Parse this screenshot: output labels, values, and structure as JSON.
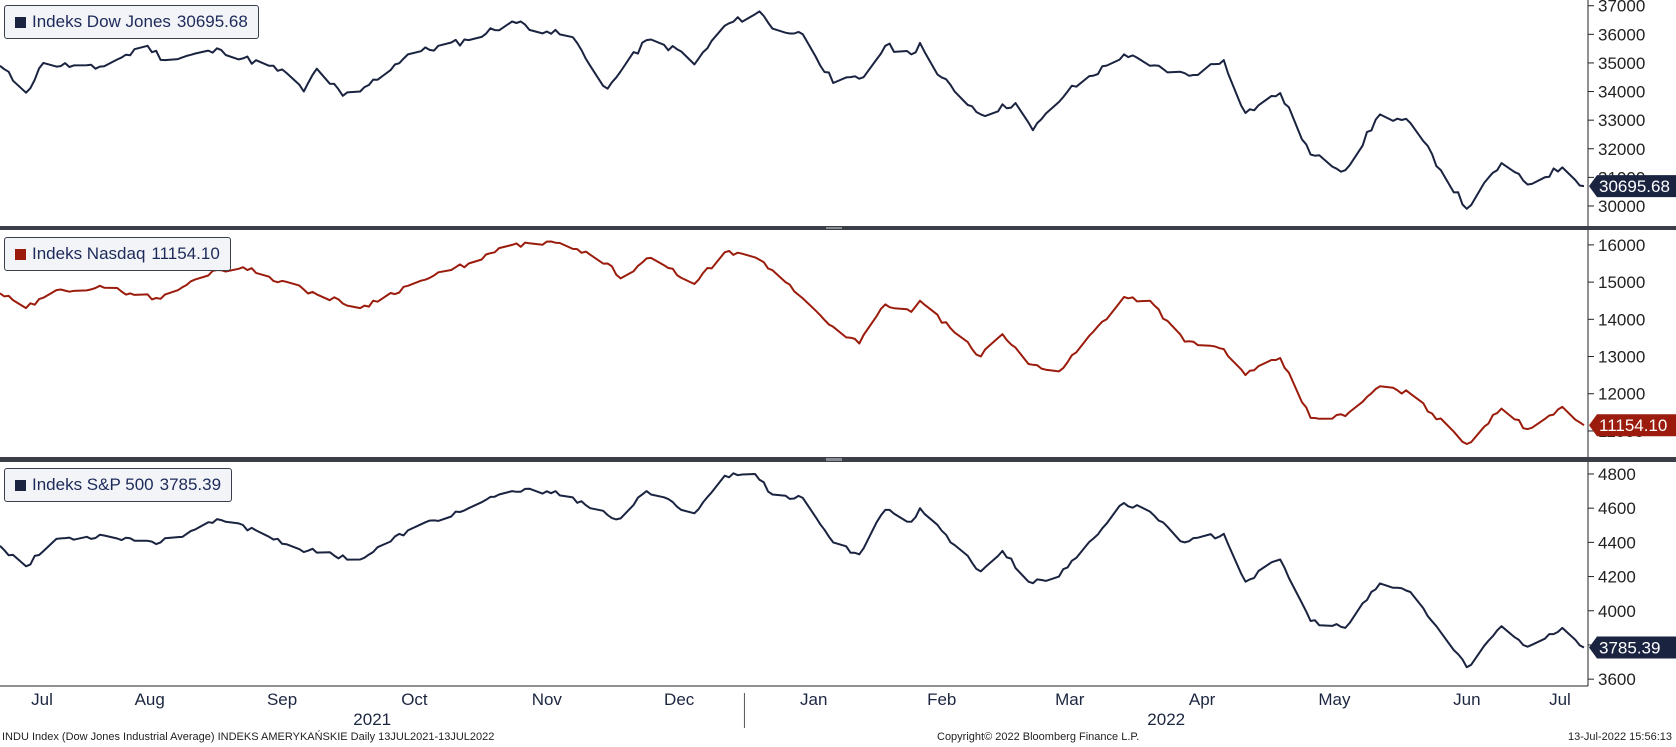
{
  "footer": {
    "left": "INDU Index (Dow Jones Industrial Average) INDEKS AMERYKAŃSKIE  Daily 13JUL2021-13JUL2022",
    "center": "Copyright© 2022 Bloomberg Finance L.P.",
    "right": "13-Jul-2022 15:56:13"
  },
  "x_axis": {
    "months": [
      "Jul",
      "Aug",
      "Sep",
      "Oct",
      "Nov",
      "Dec",
      "Jan",
      "Feb",
      "Mar",
      "Apr",
      "May",
      "Jun",
      "Jul"
    ],
    "years": [
      "2021",
      "2022"
    ]
  },
  "colors": {
    "dark_line": "#1a2340",
    "nasdaq_line": "#9b1c0c",
    "axis": "#222222"
  },
  "chart_data": [
    {
      "type": "line",
      "legend_label": "Indeks Dow Jones",
      "last_value_label": "30695.68",
      "color": "#1a2340",
      "ylim": [
        29300,
        37200
      ],
      "yticks": [
        30000,
        31000,
        32000,
        33000,
        34000,
        35000,
        36000,
        37000
      ],
      "grid": false,
      "x_start": "2021-07-13",
      "x_end": "2022-07-13",
      "series": [
        {
          "anchors": [
            [
              "2021-07-13",
              34900
            ],
            [
              "2021-07-19",
              33960
            ],
            [
              "2021-07-23",
              35000
            ],
            [
              "2021-08-04",
              34800
            ],
            [
              "2021-08-16",
              35600
            ],
            [
              "2021-08-20",
              35100
            ],
            [
              "2021-09-02",
              35450
            ],
            [
              "2021-09-17",
              34650
            ],
            [
              "2021-09-21",
              34000
            ],
            [
              "2021-09-24",
              34800
            ],
            [
              "2021-09-30",
              33850
            ],
            [
              "2021-10-04",
              34000
            ],
            [
              "2021-10-15",
              35300
            ],
            [
              "2021-10-29",
              35800
            ],
            [
              "2021-11-08",
              36450
            ],
            [
              "2021-11-16",
              36100
            ],
            [
              "2021-11-22",
              35900
            ],
            [
              "2021-11-26",
              34900
            ],
            [
              "2021-11-30",
              34100
            ],
            [
              "2021-12-03",
              34700
            ],
            [
              "2021-12-09",
              35800
            ],
            [
              "2021-12-17",
              35400
            ],
            [
              "2021-12-20",
              34950
            ],
            [
              "2021-12-27",
              36300
            ],
            [
              "2022-01-04",
              36800
            ],
            [
              "2022-01-07",
              36200
            ],
            [
              "2022-01-14",
              36000
            ],
            [
              "2022-01-21",
              34300
            ],
            [
              "2022-01-28",
              34500
            ],
            [
              "2022-02-02",
              35600
            ],
            [
              "2022-02-08",
              35300
            ],
            [
              "2022-02-10",
              35700
            ],
            [
              "2022-02-14",
              34600
            ],
            [
              "2022-02-24",
              33200
            ],
            [
              "2022-03-04",
              33600
            ],
            [
              "2022-03-08",
              32650
            ],
            [
              "2022-03-16",
              34000
            ],
            [
              "2022-03-29",
              35300
            ],
            [
              "2022-04-04",
              34900
            ],
            [
              "2022-04-13",
              34550
            ],
            [
              "2022-04-21",
              35100
            ],
            [
              "2022-04-26",
              33250
            ],
            [
              "2022-05-04",
              33950
            ],
            [
              "2022-05-11",
              31800
            ],
            [
              "2022-05-19",
              31250
            ],
            [
              "2022-05-27",
              33200
            ],
            [
              "2022-06-03",
              32900
            ],
            [
              "2022-06-16",
              29900
            ],
            [
              "2022-06-24",
              31500
            ],
            [
              "2022-06-30",
              30750
            ],
            [
              "2022-07-08",
              31350
            ],
            [
              "2022-07-13",
              30695.68
            ]
          ]
        }
      ]
    },
    {
      "type": "line",
      "legend_label": "Indeks Nasdaq",
      "last_value_label": "11154.10",
      "color": "#9b1c0c",
      "ylim": [
        10300,
        16400
      ],
      "yticks": [
        11000,
        12000,
        13000,
        14000,
        15000,
        16000
      ],
      "grid": false,
      "x_start": "2021-07-13",
      "x_end": "2022-07-13",
      "series": [
        {
          "anchors": [
            [
              "2021-07-13",
              14700
            ],
            [
              "2021-07-19",
              14300
            ],
            [
              "2021-07-27",
              14800
            ],
            [
              "2021-08-06",
              14850
            ],
            [
              "2021-08-19",
              14550
            ],
            [
              "2021-08-31",
              15300
            ],
            [
              "2021-09-07",
              15400
            ],
            [
              "2021-09-21",
              14800
            ],
            [
              "2021-10-04",
              14300
            ],
            [
              "2021-10-15",
              14900
            ],
            [
              "2021-10-29",
              15500
            ],
            [
              "2021-11-08",
              16000
            ],
            [
              "2021-11-19",
              16050
            ],
            [
              "2021-11-30",
              15500
            ],
            [
              "2021-12-03",
              15100
            ],
            [
              "2021-12-10",
              15650
            ],
            [
              "2021-12-20",
              14950
            ],
            [
              "2021-12-27",
              15800
            ],
            [
              "2022-01-04",
              15600
            ],
            [
              "2022-01-10",
              15000
            ],
            [
              "2022-01-21",
              13800
            ],
            [
              "2022-01-27",
              13350
            ],
            [
              "2022-02-02",
              14400
            ],
            [
              "2022-02-08",
              14200
            ],
            [
              "2022-02-10",
              14500
            ],
            [
              "2022-02-24",
              13000
            ],
            [
              "2022-03-01",
              13600
            ],
            [
              "2022-03-07",
              12800
            ],
            [
              "2022-03-14",
              12600
            ],
            [
              "2022-03-29",
              14600
            ],
            [
              "2022-04-04",
              14500
            ],
            [
              "2022-04-12",
              13400
            ],
            [
              "2022-04-21",
              13200
            ],
            [
              "2022-04-26",
              12500
            ],
            [
              "2022-05-04",
              12960
            ],
            [
              "2022-05-11",
              11350
            ],
            [
              "2022-05-19",
              11400
            ],
            [
              "2022-05-27",
              12200
            ],
            [
              "2022-06-03",
              12000
            ],
            [
              "2022-06-16",
              10650
            ],
            [
              "2022-06-24",
              11600
            ],
            [
              "2022-06-30",
              11050
            ],
            [
              "2022-07-08",
              11650
            ],
            [
              "2022-07-13",
              11154.1
            ]
          ]
        }
      ]
    },
    {
      "type": "line",
      "legend_label": "Indeks S&P 500",
      "last_value_label": "3785.39",
      "color": "#1a2340",
      "ylim": [
        3560,
        4870
      ],
      "yticks": [
        3600,
        3800,
        4000,
        4200,
        4400,
        4600,
        4800
      ],
      "grid": false,
      "x_start": "2021-07-13",
      "x_end": "2022-07-13",
      "series": [
        {
          "anchors": [
            [
              "2021-07-13",
              4380
            ],
            [
              "2021-07-19",
              4260
            ],
            [
              "2021-07-26",
              4420
            ],
            [
              "2021-08-06",
              4440
            ],
            [
              "2021-08-19",
              4400
            ],
            [
              "2021-09-02",
              4530
            ],
            [
              "2021-09-10",
              4470
            ],
            [
              "2021-09-20",
              4360
            ],
            [
              "2021-10-04",
              4300
            ],
            [
              "2021-10-15",
              4470
            ],
            [
              "2021-10-29",
              4600
            ],
            [
              "2021-11-08",
              4700
            ],
            [
              "2021-11-18",
              4700
            ],
            [
              "2021-11-26",
              4600
            ],
            [
              "2021-11-30",
              4560
            ],
            [
              "2021-12-03",
              4540
            ],
            [
              "2021-12-09",
              4700
            ],
            [
              "2021-12-20",
              4570
            ],
            [
              "2021-12-27",
              4790
            ],
            [
              "2022-01-03",
              4800
            ],
            [
              "2022-01-07",
              4680
            ],
            [
              "2022-01-14",
              4660
            ],
            [
              "2022-01-21",
              4400
            ],
            [
              "2022-01-27",
              4330
            ],
            [
              "2022-02-02",
              4590
            ],
            [
              "2022-02-08",
              4520
            ],
            [
              "2022-02-10",
              4600
            ],
            [
              "2022-02-24",
              4230
            ],
            [
              "2022-03-01",
              4350
            ],
            [
              "2022-03-07",
              4170
            ],
            [
              "2022-03-14",
              4200
            ],
            [
              "2022-03-29",
              4630
            ],
            [
              "2022-04-04",
              4580
            ],
            [
              "2022-04-12",
              4400
            ],
            [
              "2022-04-21",
              4450
            ],
            [
              "2022-04-26",
              4170
            ],
            [
              "2022-05-04",
              4300
            ],
            [
              "2022-05-11",
              3940
            ],
            [
              "2022-05-19",
              3900
            ],
            [
              "2022-05-27",
              4160
            ],
            [
              "2022-06-03",
              4110
            ],
            [
              "2022-06-16",
              3670
            ],
            [
              "2022-06-24",
              3910
            ],
            [
              "2022-06-30",
              3790
            ],
            [
              "2022-07-08",
              3900
            ],
            [
              "2022-07-13",
              3785.39
            ]
          ]
        }
      ]
    }
  ]
}
